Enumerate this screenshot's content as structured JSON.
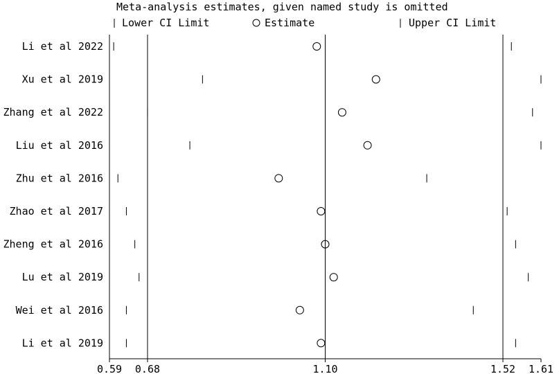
{
  "chart_data": {
    "type": "scatter",
    "title": "Meta-analysis estimates, given named study is omitted",
    "legend": {
      "lower": "Lower CI Limit",
      "estimate": "Estimate",
      "upper": "Upper CI Limit",
      "placement": "top"
    },
    "xlim": [
      0.59,
      1.61
    ],
    "xticks": [
      "0.59",
      "0.68",
      "1.10",
      "1.52",
      "1.61"
    ],
    "reference_lines": [
      0.68,
      1.1,
      1.52
    ],
    "grid": false,
    "studies": [
      {
        "label": "Li et al 2022",
        "lower": 0.6,
        "estimate": 1.08,
        "upper": 1.54
      },
      {
        "label": "Xu et al 2019",
        "lower": 0.81,
        "estimate": 1.22,
        "upper": 1.61
      },
      {
        "label": "Zhang et al 2022",
        "lower": 0.68,
        "estimate": 1.14,
        "upper": 1.59
      },
      {
        "label": "Liu et al 2016",
        "lower": 0.78,
        "estimate": 1.2,
        "upper": 1.61
      },
      {
        "label": "Zhu et al  2016",
        "lower": 0.61,
        "estimate": 0.99,
        "upper": 1.34
      },
      {
        "label": "Zhao et al 2017",
        "lower": 0.63,
        "estimate": 1.09,
        "upper": 1.53
      },
      {
        "label": "Zheng et al 2016",
        "lower": 0.65,
        "estimate": 1.1,
        "upper": 1.55
      },
      {
        "label": "Lu et al 2019",
        "lower": 0.66,
        "estimate": 1.12,
        "upper": 1.58
      },
      {
        "label": "Wei et al 2016",
        "lower": 0.63,
        "estimate": 1.04,
        "upper": 1.45
      },
      {
        "label": "Li et al 2019",
        "lower": 0.63,
        "estimate": 1.09,
        "upper": 1.55
      }
    ]
  }
}
